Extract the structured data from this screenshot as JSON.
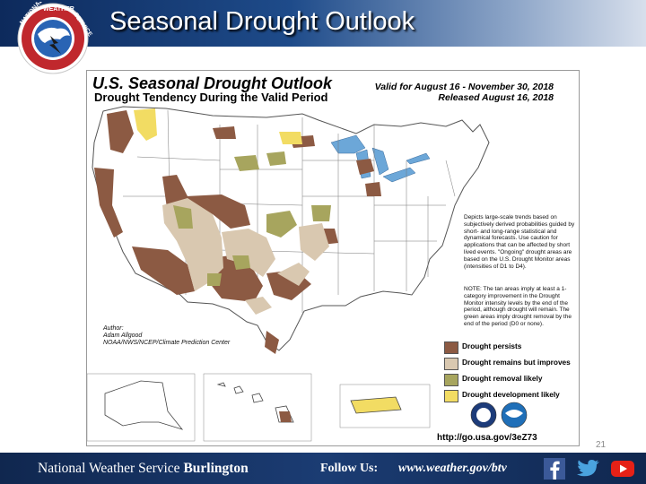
{
  "slide": {
    "title": "Seasonal Drought Outlook",
    "page_number": "21"
  },
  "map": {
    "title": "U.S. Seasonal Drought Outlook",
    "subtitle": "Drought Tendency During the Valid Period",
    "valid": "Valid for August 16 - November 30, 2018",
    "released": "Released August 16, 2018",
    "description_1": "Depicts large-scale trends based on subjectively derived probabilities guided by short- and long-range statistical and dynamical forecasts. Use caution for applications that can be affected by short lived events. \"Ongoing\" drought areas are based on the U.S. Drought Monitor areas (intensities of D1 to D4).",
    "description_2": "NOTE: The tan areas imply at least a 1-category improvement in the Drought Monitor intensity levels by the end of the period, although drought will remain. The green areas imply drought removal by the end of the period (D0 or none).",
    "author_label": "Author:",
    "author_name": "Adam Allgood",
    "author_org": "NOAA/NWS/NCEP/Climate Prediction Center",
    "url": "http://go.usa.gov/3eZ73",
    "legend": [
      {
        "label": "Drought persists",
        "color": "#8c5a43"
      },
      {
        "label": "Drought remains but improves",
        "color": "#d9c8b0"
      },
      {
        "label": "Drought removal likely",
        "color": "#a7a55e"
      },
      {
        "label": "Drought development likely",
        "color": "#f2dc63"
      }
    ]
  },
  "footer": {
    "org_prefix": "National Weather Service",
    "org_office": "Burlington",
    "follow_label": "Follow Us:",
    "website": "www.weather.gov/btv",
    "social_icons": [
      "facebook-icon",
      "twitter-icon",
      "youtube-icon"
    ]
  },
  "logo": {
    "text_left": "NATIONAL",
    "text_mid": "WEATHER",
    "text_right": "SERVICE"
  }
}
